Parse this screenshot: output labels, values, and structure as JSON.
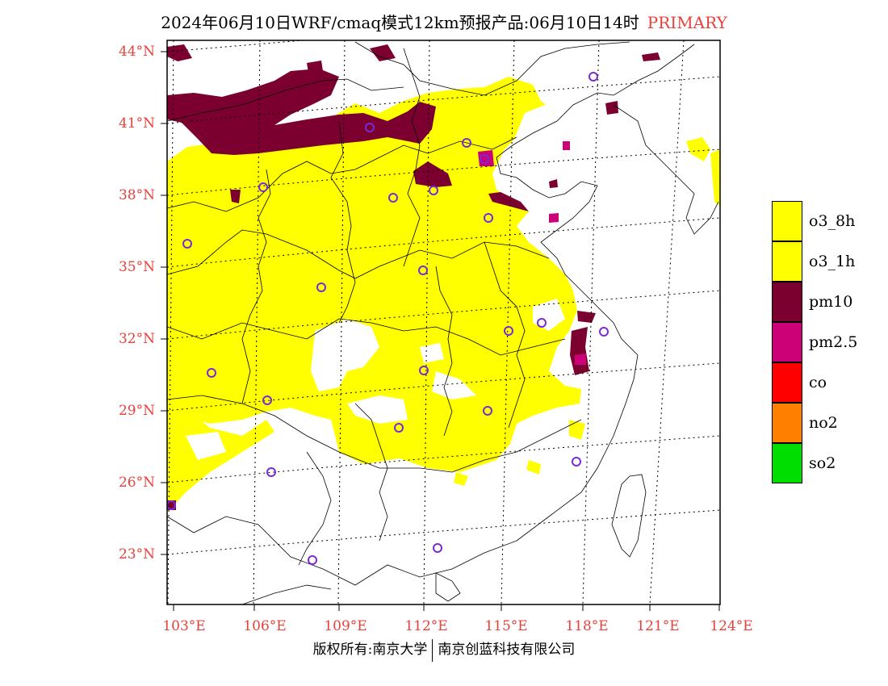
{
  "header": {
    "title": "2024年06月10日WRF/cmaq模式12km预报产品:06月10日14时",
    "tag": "PRIMARY"
  },
  "map": {
    "lat_labels": [
      "44°N",
      "41°N",
      "38°N",
      "35°N",
      "32°N",
      "29°N",
      "26°N",
      "23°N"
    ],
    "lon_labels": [
      "103°E",
      "106°E",
      "109°E",
      "112°E",
      "115°E",
      "118°E",
      "121°E",
      "124°E"
    ]
  },
  "legend": {
    "items": [
      {
        "label": "o3_8h",
        "color": "#ffff00"
      },
      {
        "label": "o3_1h",
        "color": "#ffff00"
      },
      {
        "label": "pm10",
        "color": "#7b0030"
      },
      {
        "label": "pm2.5",
        "color": "#cc0077"
      },
      {
        "label": "co",
        "color": "#ff0000"
      },
      {
        "label": "no2",
        "color": "#ff7f00"
      },
      {
        "label": "so2",
        "color": "#00dd00"
      }
    ]
  },
  "footer": {
    "left": "版权所有:南京大学",
    "right": "南京创蓝科技有限公司"
  },
  "colors": {
    "accent_red": "#e8413c",
    "o3": "#ffff00",
    "pm10": "#7b0030",
    "pm25": "#cc0077",
    "station_marker": "#7a2bd8"
  }
}
